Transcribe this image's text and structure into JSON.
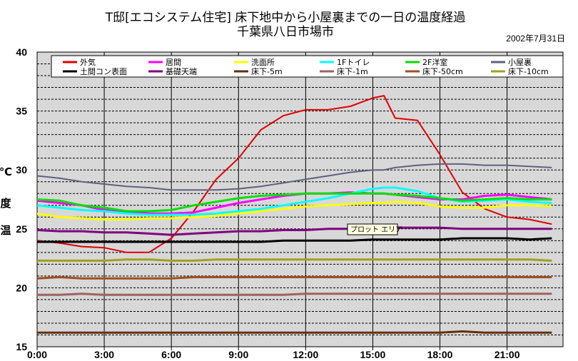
{
  "chart_data": {
    "type": "line",
    "title": "T邸[エコシステム住宅]  床下地中から小屋裏までの一日の温度経過",
    "subtitle": "千葉県八日市場市",
    "date": "2002年7月31日",
    "ylabel_chars": [
      "温",
      "度"
    ],
    "yunit": "℃",
    "ylim": [
      15,
      40
    ],
    "yticks": [
      "40",
      "35",
      "30",
      "25",
      "20",
      "15"
    ],
    "xlim": [
      0,
      23.5
    ],
    "xticks": [
      "0:00",
      "3:00",
      "6:00",
      "9:00",
      "12:00",
      "15:00",
      "18:00",
      "21:00"
    ],
    "tooltip": "プロット エリア",
    "x": [
      0,
      1,
      2,
      3,
      4,
      5,
      6,
      7,
      8,
      9,
      10,
      11,
      12,
      13,
      14,
      15,
      15.5,
      16,
      17,
      18,
      19,
      20,
      21,
      22,
      23
    ],
    "series": [
      {
        "name": "外気",
        "color": "#e00000",
        "width": 2,
        "values": [
          24.0,
          23.8,
          23.5,
          23.4,
          23.0,
          23.0,
          24.2,
          26.5,
          29.2,
          31.0,
          33.4,
          34.6,
          35.1,
          35.1,
          35.4,
          36.1,
          36.3,
          34.4,
          34.2,
          31.3,
          28.1,
          26.7,
          26.0,
          25.8,
          25.4
        ]
      },
      {
        "name": "居間",
        "color": "#ff00ff",
        "width": 3,
        "values": [
          27.4,
          27.2,
          27.0,
          26.6,
          26.4,
          26.3,
          26.3,
          26.4,
          26.8,
          27.2,
          27.5,
          27.8,
          28.0,
          28.0,
          28.1,
          28.0,
          28.0,
          27.9,
          27.7,
          27.5,
          27.5,
          27.8,
          27.9,
          27.7,
          27.5
        ]
      },
      {
        "name": "洗面所",
        "color": "#ffff00",
        "width": 3,
        "values": [
          26.3,
          26.0,
          25.9,
          25.8,
          25.8,
          25.9,
          25.9,
          26.0,
          26.1,
          26.3,
          26.5,
          26.7,
          26.9,
          27.0,
          27.1,
          27.2,
          27.2,
          27.3,
          27.2,
          26.9,
          26.8,
          26.8,
          27.0,
          27.0,
          26.9
        ]
      },
      {
        "name": "1Fトイレ",
        "color": "#00ffff",
        "width": 3,
        "values": [
          27.0,
          26.8,
          26.6,
          26.5,
          26.3,
          26.2,
          26.2,
          26.2,
          26.3,
          26.5,
          26.7,
          27.0,
          27.3,
          27.6,
          28.0,
          28.4,
          28.5,
          28.5,
          28.2,
          27.6,
          27.3,
          27.4,
          27.5,
          27.3,
          27.2
        ]
      },
      {
        "name": "2F洋室",
        "color": "#00e000",
        "width": 3,
        "values": [
          27.5,
          27.4,
          27.0,
          26.8,
          26.5,
          26.5,
          26.6,
          27.0,
          27.3,
          27.6,
          27.8,
          27.9,
          28.0,
          28.0,
          28.0,
          28.0,
          28.0,
          27.9,
          27.8,
          27.6,
          27.4,
          27.5,
          27.6,
          27.5,
          27.5
        ]
      },
      {
        "name": "小屋裏",
        "color": "#606080",
        "width": 2,
        "values": [
          29.5,
          29.3,
          29.0,
          28.8,
          28.6,
          28.5,
          28.3,
          28.3,
          28.3,
          28.4,
          28.6,
          28.9,
          29.2,
          29.5,
          29.8,
          30.0,
          30.0,
          30.2,
          30.4,
          30.5,
          30.5,
          30.4,
          30.4,
          30.3,
          30.2
        ]
      },
      {
        "name": "土間コン表面",
        "color": "#000000",
        "width": 3,
        "values": [
          23.9,
          23.9,
          23.9,
          23.9,
          23.9,
          23.9,
          23.9,
          23.9,
          23.9,
          23.9,
          23.9,
          24.0,
          24.0,
          24.0,
          24.0,
          24.1,
          24.1,
          24.1,
          24.1,
          24.1,
          24.2,
          24.2,
          24.2,
          24.1,
          24.2
        ]
      },
      {
        "name": "基礎天端",
        "color": "#800080",
        "width": 3,
        "values": [
          24.9,
          24.8,
          24.8,
          24.7,
          24.7,
          24.6,
          24.5,
          24.6,
          24.7,
          24.8,
          24.8,
          24.9,
          24.9,
          25.0,
          25.0,
          25.0,
          25.0,
          25.1,
          25.1,
          25.1,
          25.0,
          25.0,
          25.0,
          25.0,
          25.0
        ]
      },
      {
        "name": "床下-5m",
        "color": "#603000",
        "width": 3,
        "values": [
          16.2,
          16.2,
          16.2,
          16.2,
          16.2,
          16.2,
          16.2,
          16.2,
          16.2,
          16.2,
          16.2,
          16.2,
          16.2,
          16.2,
          16.2,
          16.2,
          16.2,
          16.2,
          16.2,
          16.2,
          16.3,
          16.2,
          16.2,
          16.2,
          16.2
        ]
      },
      {
        "name": "床下-1m",
        "color": "#a06060",
        "width": 3,
        "values": [
          19.4,
          19.4,
          19.5,
          19.4,
          19.4,
          19.4,
          19.4,
          19.4,
          19.4,
          19.4,
          19.4,
          19.4,
          19.5,
          19.5,
          19.5,
          19.5,
          19.5,
          19.5,
          19.5,
          19.5,
          19.5,
          19.5,
          19.5,
          19.5,
          19.5
        ]
      },
      {
        "name": "床下-50cm",
        "color": "#a05020",
        "width": 3,
        "values": [
          20.8,
          20.9,
          20.8,
          20.8,
          20.8,
          20.8,
          20.8,
          20.9,
          20.9,
          20.9,
          20.9,
          20.9,
          20.9,
          20.9,
          20.9,
          20.9,
          20.9,
          20.9,
          20.9,
          20.9,
          20.9,
          20.9,
          20.9,
          20.9,
          20.9
        ]
      },
      {
        "name": "床下-10cm",
        "color": "#a0a020",
        "width": 3,
        "values": [
          22.3,
          22.3,
          22.3,
          22.3,
          22.4,
          22.4,
          22.3,
          22.3,
          22.4,
          22.4,
          22.4,
          22.4,
          22.4,
          22.4,
          22.4,
          22.4,
          22.4,
          22.4,
          22.4,
          22.4,
          22.4,
          22.4,
          22.4,
          22.4,
          22.3
        ]
      }
    ]
  }
}
